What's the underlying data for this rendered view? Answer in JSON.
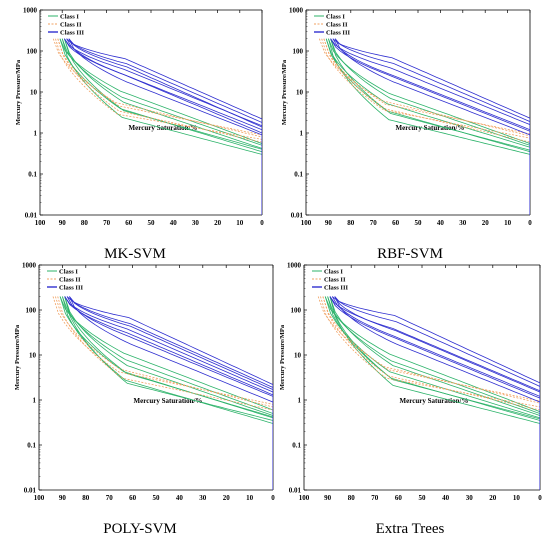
{
  "colors": {
    "class1": "#2db36a",
    "class2": "#f0a060",
    "class3": "#3030d0"
  },
  "chart_data": [
    {
      "type": "line",
      "caption": "MK-SVM",
      "xlabel": "Mercury Saturation/%",
      "ylabel": "Mercury Pressure/MPa",
      "xlim": [
        100,
        0
      ],
      "ylim": [
        0.01,
        1000
      ],
      "yscale": "log",
      "xticks": [
        "100",
        "90",
        "80",
        "70",
        "60",
        "50",
        "40",
        "30",
        "20",
        "10",
        "0"
      ],
      "yticks": [
        "0.01",
        "0.1",
        "1",
        "10",
        "100",
        "1000"
      ],
      "legend_position": "top-left",
      "series": [
        {
          "name": "Class I",
          "class": "class1",
          "start": 90,
          "curves": [
            {
              "end": 0.4,
              "mid": 0.35
            },
            {
              "end": 0.3,
              "mid": 0.32
            },
            {
              "end": 0.35,
              "mid": 0.38
            },
            {
              "end": 0.42,
              "mid": 0.42
            },
            {
              "end": 0.5,
              "mid": 0.45
            },
            {
              "end": 0.55,
              "mid": 0.5
            }
          ]
        },
        {
          "name": "Class II",
          "class": "class2",
          "start": 93,
          "curves": [
            {
              "end": 0.6,
              "mid": 0.3
            },
            {
              "end": 0.7,
              "mid": 0.25
            },
            {
              "end": 0.8,
              "mid": 0.35
            },
            {
              "end": 0.9,
              "mid": 0.3
            }
          ]
        },
        {
          "name": "Class III",
          "class": "class3",
          "start": 88,
          "curves": [
            {
              "end": 0.9,
              "mid": 0.55
            },
            {
              "end": 1.2,
              "mid": 0.6
            },
            {
              "end": 1.5,
              "mid": 0.65
            },
            {
              "end": 1.8,
              "mid": 0.7
            },
            {
              "end": 2.2,
              "mid": 0.75
            },
            {
              "end": 1.0,
              "mid": 0.62
            },
            {
              "end": 1.4,
              "mid": 0.68
            }
          ]
        }
      ]
    },
    {
      "type": "line",
      "caption": "RBF-SVM",
      "xlabel": "Mercury Saturation/%",
      "ylabel": "Mercury Pressure/MPa",
      "xlim": [
        100,
        0
      ],
      "ylim": [
        0.01,
        1000
      ],
      "yscale": "log",
      "xticks": [
        "100",
        "90",
        "80",
        "70",
        "60",
        "50",
        "40",
        "30",
        "20",
        "10",
        "0"
      ],
      "yticks": [
        "0.01",
        "0.1",
        "1",
        "10",
        "100",
        "1000"
      ],
      "legend_position": "top-left",
      "series": [
        {
          "name": "Class I",
          "class": "class1",
          "start": 90,
          "curves": [
            {
              "end": 0.38,
              "mid": 0.33
            },
            {
              "end": 0.3,
              "mid": 0.3
            },
            {
              "end": 0.45,
              "mid": 0.4
            },
            {
              "end": 0.5,
              "mid": 0.44
            },
            {
              "end": 0.55,
              "mid": 0.48
            },
            {
              "end": 0.35,
              "mid": 0.36
            }
          ]
        },
        {
          "name": "Class II",
          "class": "class2",
          "start": 93,
          "curves": [
            {
              "end": 0.6,
              "mid": 0.32
            },
            {
              "end": 0.75,
              "mid": 0.28
            },
            {
              "end": 0.85,
              "mid": 0.36
            },
            {
              "end": 0.95,
              "mid": 0.31
            }
          ]
        },
        {
          "name": "Class III",
          "class": "class3",
          "start": 88,
          "curves": [
            {
              "end": 0.9,
              "mid": 0.55
            },
            {
              "end": 1.2,
              "mid": 0.6
            },
            {
              "end": 1.6,
              "mid": 0.66
            },
            {
              "end": 1.9,
              "mid": 0.7
            },
            {
              "end": 2.3,
              "mid": 0.76
            },
            {
              "end": 1.1,
              "mid": 0.6
            }
          ]
        }
      ]
    },
    {
      "type": "line",
      "caption": "POLY-SVM",
      "xlabel": "Mercury Saturation/%",
      "ylabel": "Mercury Pressure/MPa",
      "xlim": [
        100,
        0
      ],
      "ylim": [
        0.01,
        1000
      ],
      "yscale": "log",
      "xticks": [
        "100",
        "90",
        "80",
        "70",
        "60",
        "50",
        "40",
        "30",
        "20",
        "10",
        "0"
      ],
      "yticks": [
        "0.01",
        "0.1",
        "1",
        "10",
        "100",
        "1000"
      ],
      "legend_position": "top-left",
      "series": [
        {
          "name": "Class I",
          "class": "class1",
          "start": 90,
          "curves": [
            {
              "end": 0.35,
              "mid": 0.3
            },
            {
              "end": 0.3,
              "mid": 0.34
            },
            {
              "end": 0.4,
              "mid": 0.38
            },
            {
              "end": 0.45,
              "mid": 0.42
            },
            {
              "end": 0.5,
              "mid": 0.46
            },
            {
              "end": 0.6,
              "mid": 0.5
            },
            {
              "end": 0.42,
              "mid": 0.36
            }
          ]
        },
        {
          "name": "Class II",
          "class": "class2",
          "start": 93,
          "curves": [
            {
              "end": 0.6,
              "mid": 0.28
            },
            {
              "end": 0.7,
              "mid": 0.34
            },
            {
              "end": 0.8,
              "mid": 0.3
            }
          ]
        },
        {
          "name": "Class III",
          "class": "class3",
          "start": 88,
          "curves": [
            {
              "end": 0.9,
              "mid": 0.55
            },
            {
              "end": 1.2,
              "mid": 0.6
            },
            {
              "end": 1.5,
              "mid": 0.66
            },
            {
              "end": 1.9,
              "mid": 0.7
            },
            {
              "end": 2.2,
              "mid": 0.76
            },
            {
              "end": 1.3,
              "mid": 0.63
            },
            {
              "end": 1.7,
              "mid": 0.68
            }
          ]
        }
      ]
    },
    {
      "type": "line",
      "caption": "Extra Trees",
      "xlabel": "Mercury Saturation/%",
      "ylabel": "Mercury Pressure/MPa",
      "xlim": [
        100,
        0
      ],
      "ylim": [
        0.01,
        1000
      ],
      "yscale": "log",
      "xticks": [
        "100",
        "90",
        "80",
        "70",
        "60",
        "50",
        "40",
        "30",
        "20",
        "10",
        "0"
      ],
      "yticks": [
        "0.01",
        "0.1",
        "1",
        "10",
        "100",
        "1000"
      ],
      "legend_position": "top-left",
      "series": [
        {
          "name": "Class I",
          "class": "class1",
          "start": 90,
          "curves": [
            {
              "end": 0.3,
              "mid": 0.3
            },
            {
              "end": 0.35,
              "mid": 0.34
            },
            {
              "end": 0.4,
              "mid": 0.38
            },
            {
              "end": 0.45,
              "mid": 0.42
            },
            {
              "end": 0.5,
              "mid": 0.45
            },
            {
              "end": 0.55,
              "mid": 0.5
            },
            {
              "end": 0.38,
              "mid": 0.32
            }
          ]
        },
        {
          "name": "Class II",
          "class": "class2",
          "start": 93,
          "curves": [
            {
              "end": 0.6,
              "mid": 0.3
            },
            {
              "end": 0.7,
              "mid": 0.26
            },
            {
              "end": 0.85,
              "mid": 0.34
            },
            {
              "end": 0.95,
              "mid": 0.3
            }
          ]
        },
        {
          "name": "Class III",
          "class": "class3",
          "start": 88,
          "curves": [
            {
              "end": 0.9,
              "mid": 0.55
            },
            {
              "end": 1.2,
              "mid": 0.6
            },
            {
              "end": 1.6,
              "mid": 0.66
            },
            {
              "end": 2.0,
              "mid": 0.72
            },
            {
              "end": 2.4,
              "mid": 0.78
            },
            {
              "end": 1.1,
              "mid": 0.6
            },
            {
              "end": 1.5,
              "mid": 0.64
            }
          ]
        }
      ]
    }
  ]
}
